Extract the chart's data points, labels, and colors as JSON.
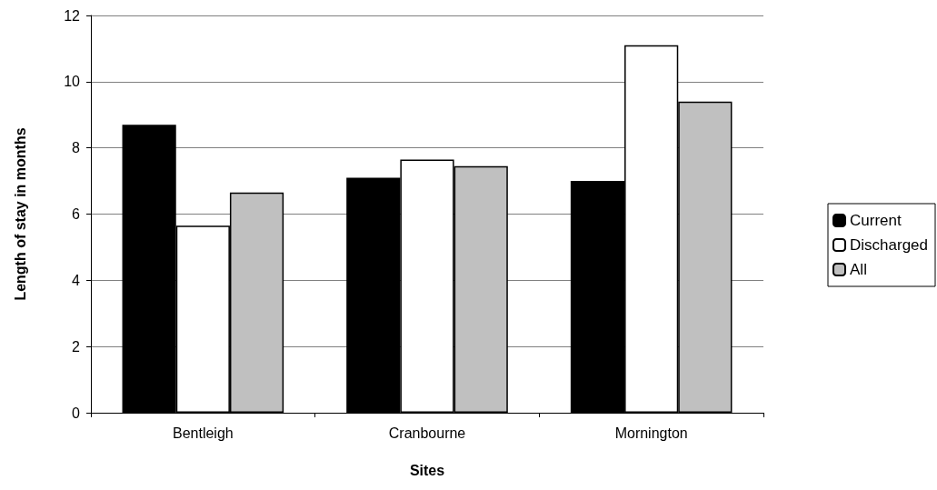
{
  "chart_data": {
    "type": "bar",
    "xlabel": "Sites",
    "ylabel": "Length of stay in months",
    "categories": [
      "Bentleigh",
      "Cranbourne",
      "Mornington"
    ],
    "series": [
      {
        "name": "Current",
        "color": "#000000",
        "values": [
          8.7,
          7.1,
          7.0
        ]
      },
      {
        "name": "Discharged",
        "color": "#ffffff",
        "values": [
          5.65,
          7.65,
          11.1
        ]
      },
      {
        "name": "All",
        "color": "#c0c0c0",
        "values": [
          6.65,
          7.45,
          9.4
        ]
      }
    ],
    "ylim": [
      0,
      12
    ],
    "yticks": [
      0,
      2,
      4,
      6,
      8,
      10,
      12
    ],
    "grid": "y",
    "legend": "right"
  }
}
